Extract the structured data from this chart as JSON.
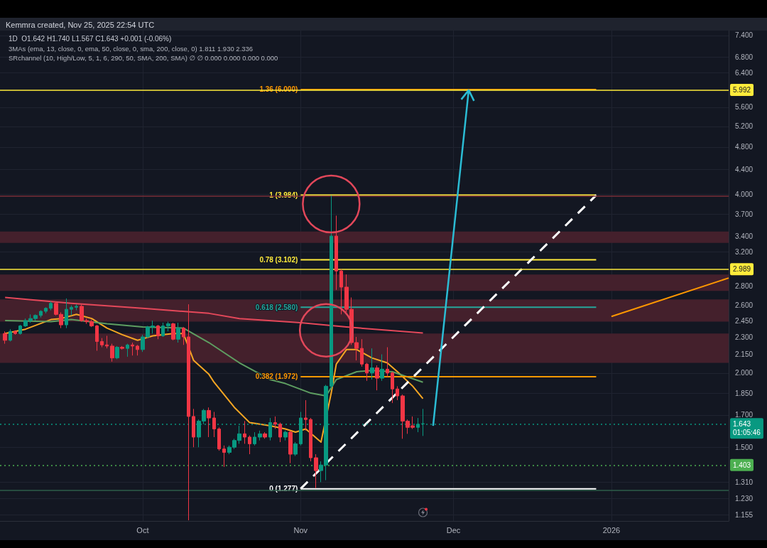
{
  "chart_data": {
    "type": "candlestick",
    "title": "Kemmra created, Nov 25, 2025 22:54 UTC",
    "subtitle": "1D  O1.642 H1.740 L1.567 C1.643 +0.001 (-0.06%)",
    "annotations": [
      "3MAs (ema, 13, close, 0, ema, 50, close, 0, sma, 200, close, 0) 1.811 1.930 2.336",
      "SRchannel (10, High/Low, 5, 1, 6, 290, 50, SMA, 200, SMA) ∅ ∅ 0.000 0.000 0.000 0.000"
    ],
    "x": [
      "2025-09-04",
      "2025-09-05",
      "2025-09-06",
      "2025-09-07",
      "2025-09-08",
      "2025-09-09",
      "2025-09-10",
      "2025-09-11",
      "2025-09-12",
      "2025-09-13",
      "2025-09-14",
      "2025-09-15",
      "2025-09-16",
      "2025-09-17",
      "2025-09-18",
      "2025-09-19",
      "2025-09-20",
      "2025-09-21",
      "2025-09-22",
      "2025-09-23",
      "2025-09-24",
      "2025-09-25",
      "2025-09-26",
      "2025-09-27",
      "2025-09-28",
      "2025-09-29",
      "2025-09-30",
      "2025-10-01",
      "2025-10-02",
      "2025-10-03",
      "2025-10-04",
      "2025-10-05",
      "2025-10-06",
      "2025-10-07",
      "2025-10-08",
      "2025-10-09",
      "2025-10-10",
      "2025-10-11",
      "2025-10-12",
      "2025-10-13",
      "2025-10-14",
      "2025-10-15",
      "2025-10-16",
      "2025-10-17",
      "2025-10-18",
      "2025-10-19",
      "2025-10-20",
      "2025-10-21",
      "2025-10-22",
      "2025-10-23",
      "2025-10-24",
      "2025-10-25",
      "2025-10-26",
      "2025-10-27",
      "2025-10-28",
      "2025-10-29",
      "2025-10-30",
      "2025-10-31",
      "2025-11-01",
      "2025-11-02",
      "2025-11-03",
      "2025-11-04",
      "2025-11-05",
      "2025-11-06",
      "2025-11-07",
      "2025-11-08",
      "2025-11-09",
      "2025-11-10",
      "2025-11-11",
      "2025-11-12",
      "2025-11-13",
      "2025-11-14",
      "2025-11-15",
      "2025-11-16",
      "2025-11-17",
      "2025-11-18",
      "2025-11-19",
      "2025-11-20",
      "2025-11-21",
      "2025-11-22",
      "2025-11-23",
      "2025-11-24",
      "2025-11-25"
    ],
    "ohlc": [
      [
        2.33,
        2.35,
        2.24,
        2.27
      ],
      [
        2.27,
        2.37,
        2.26,
        2.35
      ],
      [
        2.35,
        2.36,
        2.32,
        2.33
      ],
      [
        2.33,
        2.41,
        2.32,
        2.4
      ],
      [
        2.4,
        2.47,
        2.39,
        2.45
      ],
      [
        2.45,
        2.51,
        2.43,
        2.47
      ],
      [
        2.47,
        2.51,
        2.45,
        2.5
      ],
      [
        2.5,
        2.55,
        2.48,
        2.54
      ],
      [
        2.54,
        2.58,
        2.52,
        2.57
      ],
      [
        2.57,
        2.64,
        2.55,
        2.62
      ],
      [
        2.62,
        2.64,
        2.5,
        2.51
      ],
      [
        2.51,
        2.53,
        2.38,
        2.41
      ],
      [
        2.41,
        2.67,
        2.38,
        2.56
      ],
      [
        2.56,
        2.6,
        2.5,
        2.58
      ],
      [
        2.58,
        2.61,
        2.55,
        2.59
      ],
      [
        2.59,
        2.61,
        2.44,
        2.45
      ],
      [
        2.45,
        2.47,
        2.42,
        2.44
      ],
      [
        2.44,
        2.46,
        2.39,
        2.4
      ],
      [
        2.4,
        2.41,
        2.18,
        2.26
      ],
      [
        2.26,
        2.29,
        2.21,
        2.23
      ],
      [
        2.23,
        2.31,
        2.2,
        2.22
      ],
      [
        2.22,
        2.24,
        2.09,
        2.12
      ],
      [
        2.12,
        2.22,
        2.11,
        2.21
      ],
      [
        2.21,
        2.22,
        2.19,
        2.2
      ],
      [
        2.2,
        2.24,
        2.13,
        2.23
      ],
      [
        2.23,
        2.25,
        2.14,
        2.22
      ],
      [
        2.22,
        2.23,
        2.14,
        2.19
      ],
      [
        2.19,
        2.32,
        2.17,
        2.3
      ],
      [
        2.3,
        2.4,
        2.29,
        2.39
      ],
      [
        2.39,
        2.45,
        2.33,
        2.4
      ],
      [
        2.4,
        2.41,
        2.28,
        2.31
      ],
      [
        2.31,
        2.43,
        2.3,
        2.4
      ],
      [
        2.4,
        2.44,
        2.35,
        2.42
      ],
      [
        2.42,
        2.43,
        2.27,
        2.28
      ],
      [
        2.28,
        2.43,
        2.25,
        2.38
      ],
      [
        2.38,
        2.39,
        2.23,
        2.3
      ],
      [
        2.3,
        2.61,
        1.13,
        1.69
      ],
      [
        1.69,
        1.74,
        1.5,
        1.56
      ],
      [
        1.56,
        1.67,
        1.5,
        1.66
      ],
      [
        1.66,
        1.74,
        1.64,
        1.73
      ],
      [
        1.73,
        1.75,
        1.56,
        1.68
      ],
      [
        1.68,
        1.72,
        1.56,
        1.61
      ],
      [
        1.61,
        1.62,
        1.48,
        1.49
      ],
      [
        1.49,
        1.51,
        1.39,
        1.47
      ],
      [
        1.47,
        1.51,
        1.46,
        1.5
      ],
      [
        1.5,
        1.55,
        1.49,
        1.54
      ],
      [
        1.54,
        1.63,
        1.52,
        1.58
      ],
      [
        1.58,
        1.66,
        1.52,
        1.56
      ],
      [
        1.56,
        1.57,
        1.46,
        1.52
      ],
      [
        1.52,
        1.59,
        1.51,
        1.56
      ],
      [
        1.56,
        1.6,
        1.54,
        1.58
      ],
      [
        1.58,
        1.59,
        1.55,
        1.56
      ],
      [
        1.56,
        1.68,
        1.54,
        1.65
      ],
      [
        1.65,
        1.69,
        1.61,
        1.64
      ],
      [
        1.64,
        1.65,
        1.53,
        1.56
      ],
      [
        1.56,
        1.6,
        1.54,
        1.59
      ],
      [
        1.59,
        1.6,
        1.41,
        1.46
      ],
      [
        1.46,
        1.53,
        1.45,
        1.52
      ],
      [
        1.52,
        1.72,
        1.51,
        1.68
      ],
      [
        1.68,
        1.8,
        1.6,
        1.67
      ],
      [
        1.67,
        1.68,
        1.42,
        1.44
      ],
      [
        1.44,
        1.46,
        1.28,
        1.37
      ],
      [
        1.37,
        1.42,
        1.31,
        1.4
      ],
      [
        1.4,
        1.91,
        1.32,
        1.9
      ],
      [
        1.9,
        3.98,
        1.88,
        3.4
      ],
      [
        3.4,
        3.68,
        2.76,
        2.97
      ],
      [
        2.97,
        2.99,
        2.51,
        2.79
      ],
      [
        2.79,
        2.93,
        2.53,
        2.56
      ],
      [
        2.56,
        2.68,
        2.23,
        2.25
      ],
      [
        2.25,
        2.3,
        2.1,
        2.2
      ],
      [
        2.2,
        2.28,
        2.05,
        2.07
      ],
      [
        2.07,
        2.08,
        1.94,
        2.0
      ],
      [
        2.0,
        2.2,
        1.95,
        2.04
      ],
      [
        2.04,
        2.06,
        1.87,
        1.96
      ],
      [
        1.96,
        2.15,
        1.94,
        2.03
      ],
      [
        2.03,
        2.21,
        1.97,
        2.0
      ],
      [
        2.0,
        2.01,
        1.78,
        1.88
      ],
      [
        1.88,
        1.9,
        1.8,
        1.83
      ],
      [
        1.83,
        1.84,
        1.55,
        1.66
      ],
      [
        1.66,
        1.67,
        1.58,
        1.62
      ],
      [
        1.63,
        1.69,
        1.61,
        1.62
      ],
      [
        1.62,
        1.68,
        1.59,
        1.64
      ],
      [
        1.642,
        1.74,
        1.567,
        1.643
      ]
    ],
    "colors": [
      "#f23645",
      "#089981",
      "#f23645",
      "#089981",
      "#089981",
      "#089981",
      "#089981",
      "#089981",
      "#089981",
      "#089981",
      "#f23645",
      "#f23645",
      "#089981",
      "#089981",
      "#089981",
      "#f23645",
      "#f23645",
      "#f23645",
      "#f23645",
      "#f23645",
      "#f23645",
      "#f23645",
      "#089981",
      "#f23645",
      "#089981",
      "#f23645",
      "#f23645",
      "#089981",
      "#089981",
      "#089981",
      "#f23645",
      "#089981",
      "#089981",
      "#f23645",
      "#089981",
      "#f23645",
      "#f23645",
      "#f23645",
      "#089981",
      "#089981",
      "#f23645",
      "#f23645",
      "#f23645",
      "#f23645",
      "#089981",
      "#089981",
      "#089981",
      "#f23645",
      "#f23645",
      "#089981",
      "#089981",
      "#f23645",
      "#089981",
      "#f23645",
      "#f23645",
      "#089981",
      "#f23645",
      "#089981",
      "#089981",
      "#f23645",
      "#f23645",
      "#f23645",
      "#089981",
      "#089981",
      "#089981",
      "#f23645",
      "#f23645",
      "#f23645",
      "#f23645",
      "#f23645",
      "#f23645",
      "#f23645",
      "#089981",
      "#f23645",
      "#089981",
      "#f23645",
      "#f23645",
      "#f23645",
      "#f23645",
      "#f23645",
      "#f23645",
      "#089981",
      "#089981"
    ],
    "series": [
      {
        "type": "line",
        "color": "#f5a623",
        "x": [
          "2025-09-04",
          "2025-09-08",
          "2025-09-13",
          "2025-09-15",
          "2025-09-18",
          "2025-09-21",
          "2025-09-24",
          "2025-09-27",
          "2025-09-30",
          "2025-10-03",
          "2025-10-07",
          "2025-10-09",
          "2025-10-11",
          "2025-10-14",
          "2025-10-15",
          "2025-10-19",
          "2025-10-22",
          "2025-10-26",
          "2025-10-29",
          "2025-10-31",
          "2025-11-02",
          "2025-11-05",
          "2025-11-07",
          "2025-11-08",
          "2025-11-10",
          "2025-11-12",
          "2025-11-15",
          "2025-11-18",
          "2025-11-20",
          "2025-11-23",
          "2025-11-25"
        ],
        "values": [
          2.33,
          2.37,
          2.46,
          2.47,
          2.51,
          2.47,
          2.38,
          2.32,
          2.27,
          2.31,
          2.33,
          2.33,
          2.1,
          1.99,
          1.93,
          1.75,
          1.65,
          1.63,
          1.61,
          1.59,
          1.61,
          1.53,
          1.85,
          2.07,
          2.19,
          2.19,
          2.12,
          2.08,
          2.01,
          1.9,
          1.811
        ]
      },
      {
        "type": "line",
        "color": "#5e9e61",
        "x": [
          "2025-09-04",
          "2025-09-13",
          "2025-09-17",
          "2025-09-24",
          "2025-10-01",
          "2025-10-09",
          "2025-10-14",
          "2025-10-20",
          "2025-10-26",
          "2025-10-29",
          "2025-11-03",
          "2025-11-06",
          "2025-11-08",
          "2025-11-12",
          "2025-11-15",
          "2025-11-19",
          "2025-11-25"
        ],
        "values": [
          2.45,
          2.44,
          2.46,
          2.42,
          2.39,
          2.38,
          2.25,
          2.08,
          1.95,
          1.92,
          1.85,
          1.83,
          1.95,
          2.01,
          2.02,
          2.01,
          1.93
        ]
      },
      {
        "type": "line",
        "color": "#e5485a",
        "x": [
          "2025-09-04",
          "2025-09-17",
          "2025-10-01",
          "2025-10-14",
          "2025-10-20",
          "2025-11-01",
          "2025-11-10",
          "2025-11-25"
        ],
        "values": [
          2.68,
          2.62,
          2.57,
          2.52,
          2.47,
          2.43,
          2.39,
          2.336
        ]
      },
      {
        "type": "line",
        "name": "1.36 (6.000)",
        "color": "#ff9800",
        "x": [
          "2025-11-01",
          "2025-12-29"
        ],
        "values": [
          6.0,
          6.0
        ]
      },
      {
        "type": "line",
        "name": "1 (3.984)",
        "color": "#ffeb3b",
        "x": [
          "2025-11-01",
          "2025-12-29"
        ],
        "values": [
          3.984,
          3.984
        ]
      },
      {
        "type": "line",
        "name": "0.78 (3.102)",
        "color": "#ffeb3b",
        "x": [
          "2025-11-01",
          "2025-12-29"
        ],
        "values": [
          3.102,
          3.102
        ]
      },
      {
        "type": "line",
        "name": "0.618 (2.580)",
        "color": "#26a69a",
        "x": [
          "2025-11-01",
          "2025-12-29"
        ],
        "values": [
          2.58,
          2.58
        ]
      },
      {
        "type": "line",
        "name": "0.382 (1.972)",
        "color": "#ff9800",
        "x": [
          "2025-11-01",
          "2025-12-29"
        ],
        "values": [
          1.972,
          1.972
        ]
      },
      {
        "type": "line",
        "name": "0 (1.277)",
        "color": "#ffffff",
        "x": [
          "2025-11-01",
          "2025-12-29"
        ],
        "values": [
          1.277,
          1.277
        ]
      },
      {
        "type": "line",
        "color": "#ffffff",
        "line_style": "dashed",
        "x": [
          "2025-11-01",
          "2025-12-29"
        ],
        "values": [
          1.277,
          3.984
        ]
      },
      {
        "type": "line",
        "color": "#ff9800",
        "x": [
          "2026-01-01",
          "2026-01-24"
        ],
        "values": [
          2.49,
          2.89
        ]
      }
    ],
    "ref_lines": [
      {
        "axis": "y",
        "value": 5.992,
        "label": "5.992",
        "color": "#ffeb3b"
      },
      {
        "axis": "y",
        "value": 3.97,
        "color": "#7a2e38"
      },
      {
        "axis": "y",
        "value": 2.989,
        "label": "2.989",
        "color": "#ffeb3b"
      },
      {
        "axis": "y",
        "value": 1.643,
        "label": "1.643\n01:05:46",
        "color": "#089981",
        "line_style": "dotted"
      },
      {
        "axis": "y",
        "value": 1.403,
        "label": "1.403",
        "color": "#4caf50",
        "line_style": "dotted"
      },
      {
        "axis": "y",
        "value": 1.27,
        "color": "#2e5e4a"
      }
    ],
    "bands": [
      {
        "axis": "y",
        "from": 3.31,
        "to": 3.46,
        "color": "#44202c"
      },
      {
        "axis": "y",
        "from": 2.75,
        "to": 2.93,
        "color": "#44202c"
      },
      {
        "axis": "y",
        "from": 2.44,
        "to": 2.66,
        "color": "#44202c"
      },
      {
        "axis": "y",
        "from": 2.08,
        "to": 2.33,
        "color": "#44202c"
      }
    ],
    "xlim": [
      "2025-09-03",
      "2026-01-24"
    ],
    "xticks": [
      {
        "value": "2025-10-01",
        "label": "Oct"
      },
      {
        "value": "2025-11-01",
        "label": "Nov"
      },
      {
        "value": "2025-12-01",
        "label": "Dec"
      },
      {
        "value": "2026-01-01",
        "label": "2026"
      }
    ],
    "ylim": [
      1.127,
      7.54
    ],
    "yticks": [
      {
        "value": 1.155,
        "label": "1.155"
      },
      {
        "value": 1.23,
        "label": "1.230"
      },
      {
        "value": 1.31,
        "label": "1.310"
      },
      {
        "value": 1.5,
        "label": "1.500"
      },
      {
        "value": 1.7,
        "label": "1.700"
      },
      {
        "value": 1.85,
        "label": "1.850"
      },
      {
        "value": 2,
        "label": "2.000"
      },
      {
        "value": 2.15,
        "label": "2.150"
      },
      {
        "value": 2.3,
        "label": "2.300"
      },
      {
        "value": 2.45,
        "label": "2.450"
      },
      {
        "value": 2.6,
        "label": "2.600"
      },
      {
        "value": 2.8,
        "label": "2.800"
      },
      {
        "value": 3.2,
        "label": "3.200"
      },
      {
        "value": 3.4,
        "label": "3.400"
      },
      {
        "value": 3.7,
        "label": "3.700"
      },
      {
        "value": 4,
        "label": "4.000"
      },
      {
        "value": 4.4,
        "label": "4.400"
      },
      {
        "value": 4.8,
        "label": "4.800"
      },
      {
        "value": 5.2,
        "label": "5.200"
      },
      {
        "value": 5.6,
        "label": "5.600"
      },
      {
        "value": 6.4,
        "label": "6.400"
      },
      {
        "value": 6.8,
        "label": "6.800"
      },
      {
        "value": 7.4,
        "label": "7.400"
      }
    ],
    "log": "y",
    "grid": true
  }
}
